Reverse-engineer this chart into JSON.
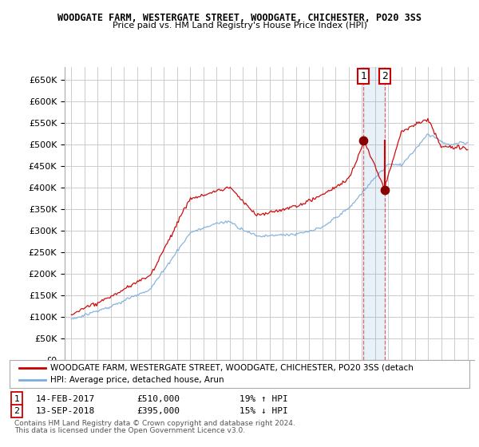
{
  "title1": "WOODGATE FARM, WESTERGATE STREET, WOODGATE, CHICHESTER, PO20 3SS",
  "title2": "Price paid vs. HM Land Registry's House Price Index (HPI)",
  "legend_label1": "WOODGATE FARM, WESTERGATE STREET, WOODGATE, CHICHESTER, PO20 3SS (detach",
  "legend_label2": "HPI: Average price, detached house, Arun",
  "annotation1_label": "1",
  "annotation1_date": "14-FEB-2017",
  "annotation1_price": "£510,000",
  "annotation1_hpi": "19% ↑ HPI",
  "annotation2_label": "2",
  "annotation2_date": "13-SEP-2018",
  "annotation2_price": "£395,000",
  "annotation2_hpi": "15% ↓ HPI",
  "footer1": "Contains HM Land Registry data © Crown copyright and database right 2024.",
  "footer2": "This data is licensed under the Open Government Licence v3.0.",
  "ylim": [
    0,
    680000
  ],
  "yticks": [
    0,
    50000,
    100000,
    150000,
    200000,
    250000,
    300000,
    350000,
    400000,
    450000,
    500000,
    550000,
    600000,
    650000
  ],
  "color_red": "#cc0000",
  "color_blue": "#7aaddc",
  "background_color": "#ffffff",
  "grid_color": "#cccccc",
  "sale1_year": 2017.12,
  "sale1_value": 510000,
  "sale2_year": 2018.71,
  "sale2_value": 395000,
  "xmin": 1995,
  "xmax": 2025
}
